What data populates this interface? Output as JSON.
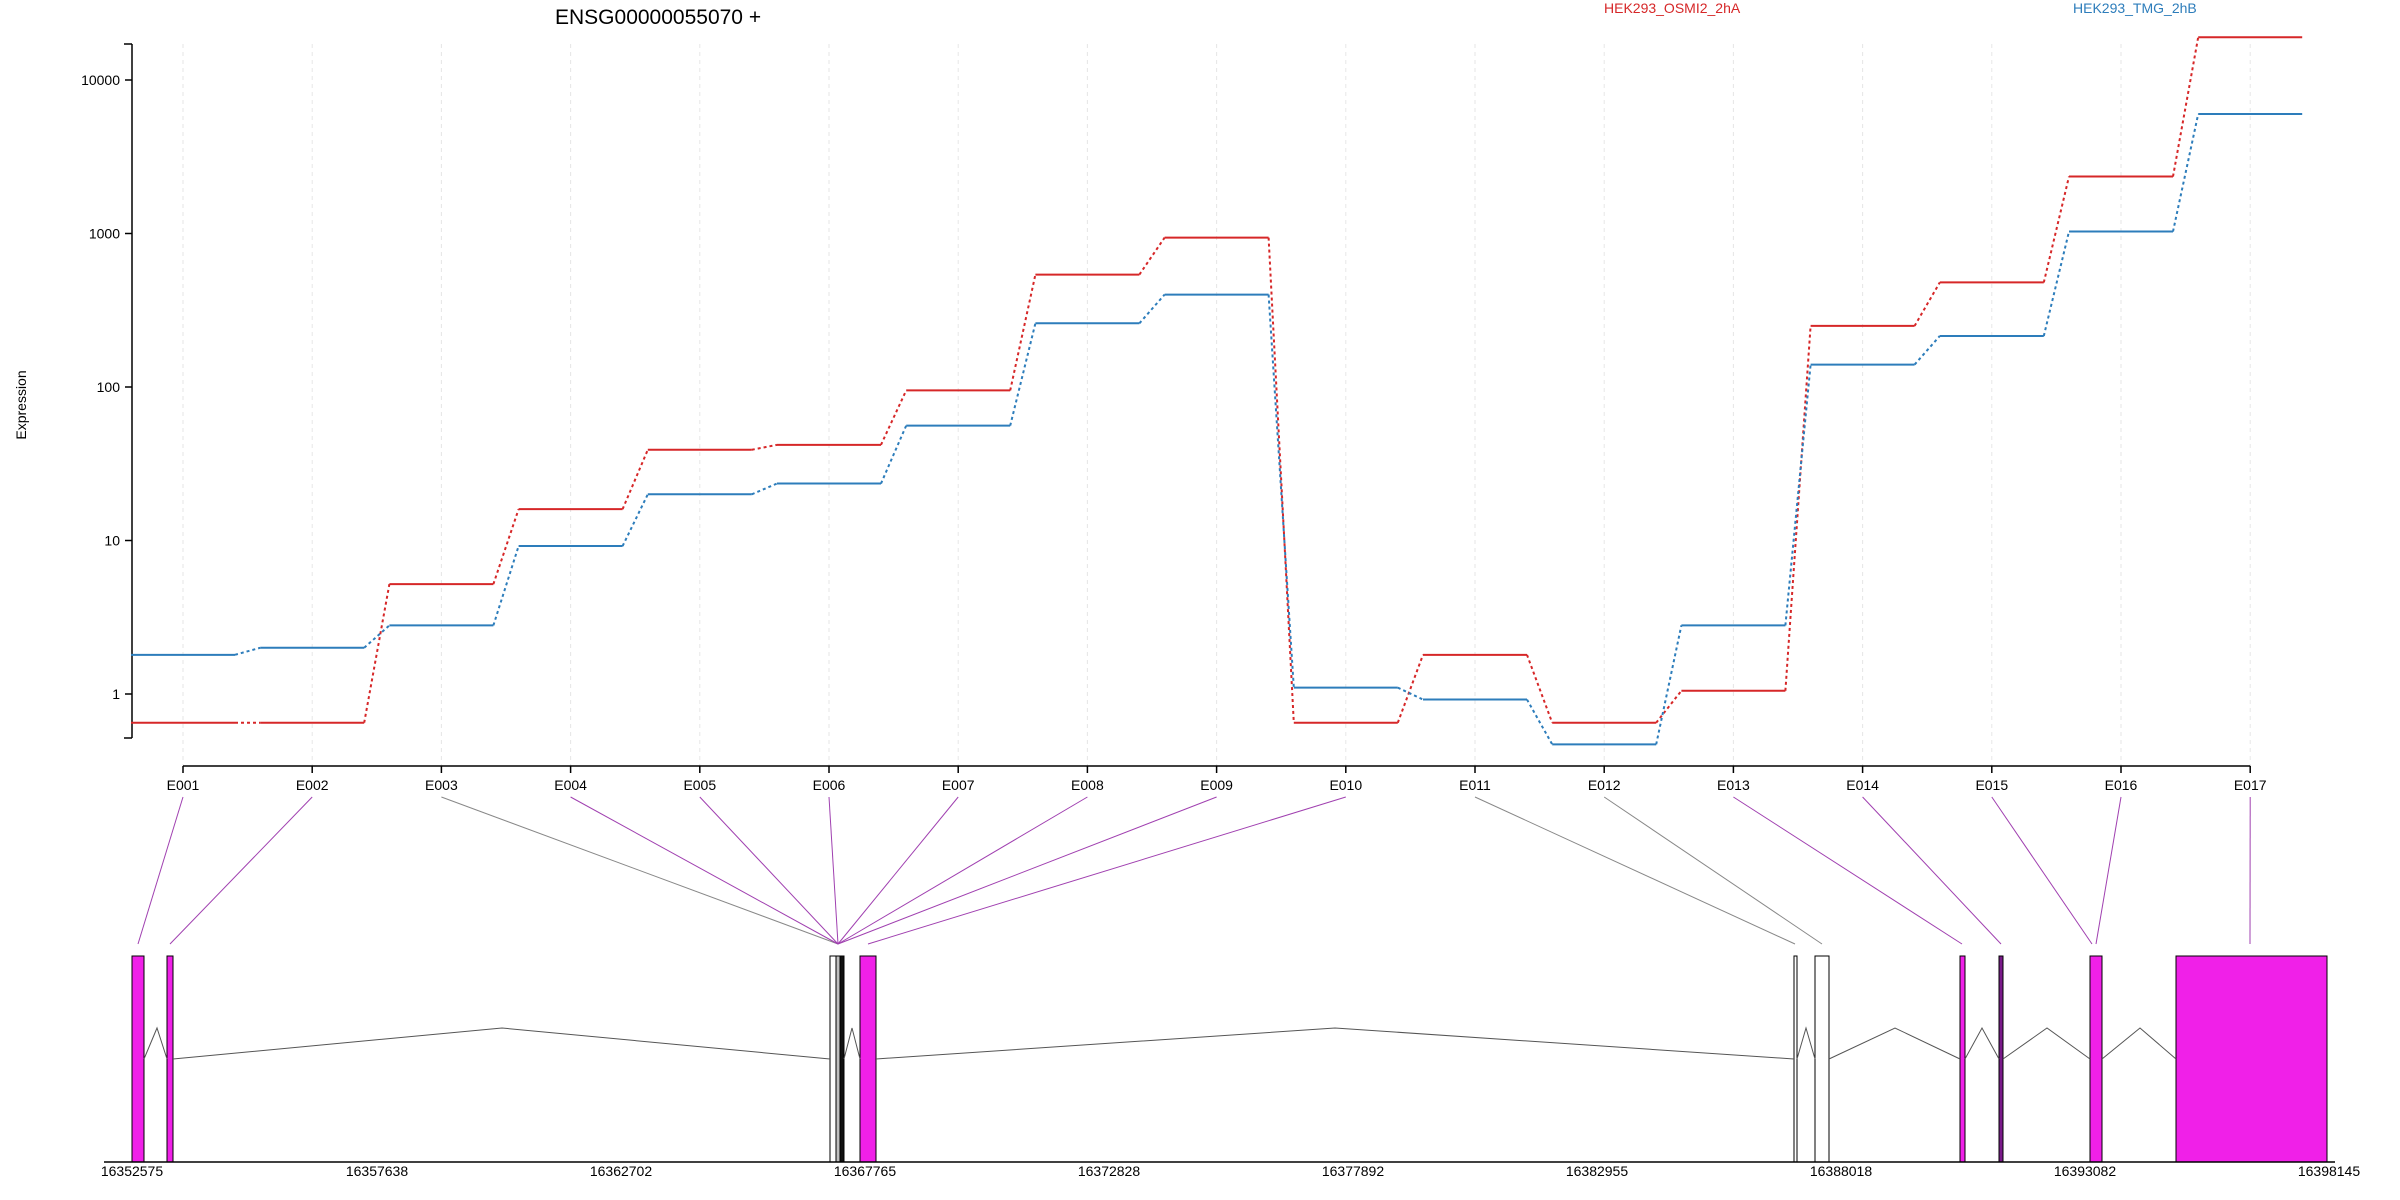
{
  "chart_data": {
    "type": "line",
    "title": "ENSG00000055070 +",
    "ylabel": "Expression",
    "yscale": "log",
    "ylim": [
      0.5,
      30000
    ],
    "yticks": [
      1,
      10,
      100,
      1000,
      10000
    ],
    "ytick_labels": [
      "1",
      "10",
      "100",
      "1000",
      "10000"
    ],
    "categories": [
      "E001",
      "E002",
      "E003",
      "E004",
      "E005",
      "E006",
      "E007",
      "E008",
      "E009",
      "E010",
      "E011",
      "E012",
      "E013",
      "E014",
      "E015",
      "E016",
      "E017"
    ],
    "series": [
      {
        "name": "HEK293_OSMI2_2hA",
        "color": "#d62728",
        "values": [
          0.65,
          0.65,
          5.2,
          16,
          39,
          42,
          95,
          540,
          940,
          0.65,
          1.8,
          0.65,
          1.05,
          250,
          480,
          2350,
          19000
        ]
      },
      {
        "name": "HEK293_TMG_2hB",
        "color": "#2d7dbb",
        "values": [
          1.8,
          2.0,
          2.8,
          9.2,
          20,
          23.5,
          56,
          260,
          400,
          1.1,
          0.92,
          0.47,
          2.8,
          140,
          215,
          1030,
          6000
        ]
      }
    ],
    "gene_model": {
      "coordinate_labels": [
        "16352575",
        "16357638",
        "16362702",
        "16367765",
        "16372828",
        "16377892",
        "16382955",
        "16388018",
        "16393082",
        "16398145"
      ],
      "exon_color": "#f020e8",
      "link_color_differential": "#a040b0",
      "link_color_normal": "#888888"
    }
  }
}
